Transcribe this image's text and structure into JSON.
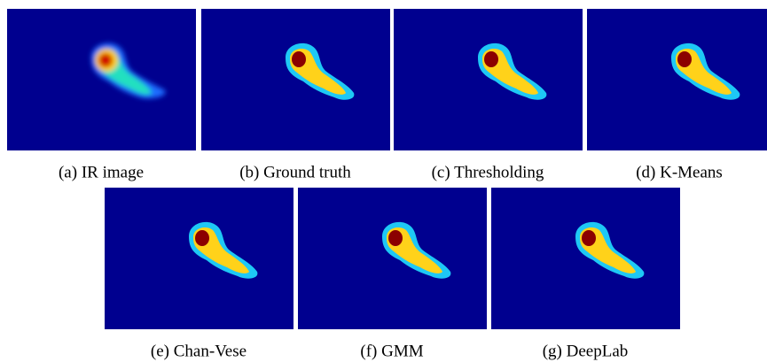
{
  "figure": {
    "panels": [
      {
        "caption": "(a) IR image"
      },
      {
        "caption": "(b) Ground truth"
      },
      {
        "caption": "(c) Thresholding"
      },
      {
        "caption": "(d) K-Means"
      },
      {
        "caption": "(e) Chan-Vese"
      },
      {
        "caption": "(f) GMM"
      },
      {
        "caption": "(g) DeepLab"
      }
    ]
  }
}
